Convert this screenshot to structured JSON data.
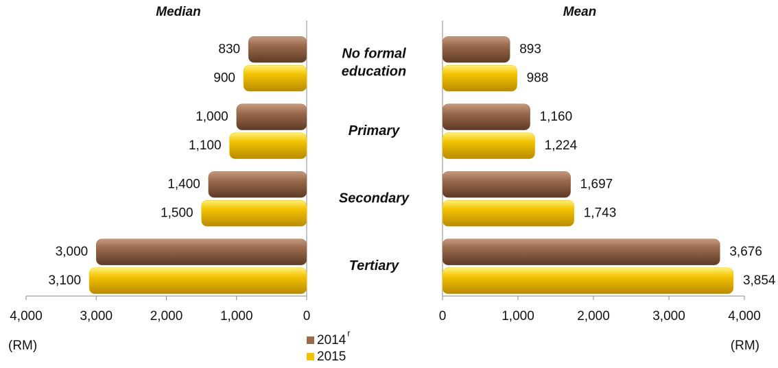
{
  "chart_data": [
    {
      "type": "hbar",
      "title": "Median",
      "xlabel": "(RM)",
      "x_inverted": true,
      "categories": [
        "No formal education",
        "Primary",
        "Secondary",
        "Tertiary"
      ],
      "series": [
        {
          "name": "2014",
          "name_note": "r",
          "color": "#9a6a4c",
          "values": [
            830,
            1000,
            1400,
            3000
          ],
          "value_labels": [
            "830",
            "1,000",
            "1,400",
            "3,000"
          ]
        },
        {
          "name": "2015",
          "color": "#f2c200",
          "values": [
            900,
            1100,
            1500,
            3100
          ],
          "value_labels": [
            "900",
            "1,100",
            "1,500",
            "3,100"
          ]
        }
      ],
      "xlim": [
        0,
        4000
      ],
      "xticks": [
        0,
        {
          "value": 1000,
          "label": "1,000"
        },
        {
          "value": 2000,
          "label": "2,000"
        },
        {
          "value": 3000,
          "label": "3,000"
        },
        {
          "value": 4000,
          "label": "4,000"
        }
      ]
    },
    {
      "type": "hbar",
      "title": "Mean",
      "xlabel": "(RM)",
      "x_inverted": false,
      "series": [
        {
          "color": "#9a6a4c",
          "values": [
            893,
            1160,
            1697,
            3676
          ],
          "value_labels": [
            "893",
            "1,160",
            "1,697",
            "3,676"
          ]
        },
        {
          "color": "#f2c200",
          "values": [
            988,
            1224,
            1743,
            3854
          ],
          "value_labels": [
            "988",
            "1,224",
            "1,743",
            "3,854"
          ]
        }
      ],
      "xlim": [
        0,
        4000
      ],
      "xticks": [
        0,
        {
          "value": 1000,
          "label": "1,000"
        },
        {
          "value": 2000,
          "label": "2,000"
        },
        {
          "value": 3000,
          "label": "3,000"
        },
        {
          "value": 4000,
          "label": "4,000"
        }
      ]
    }
  ]
}
